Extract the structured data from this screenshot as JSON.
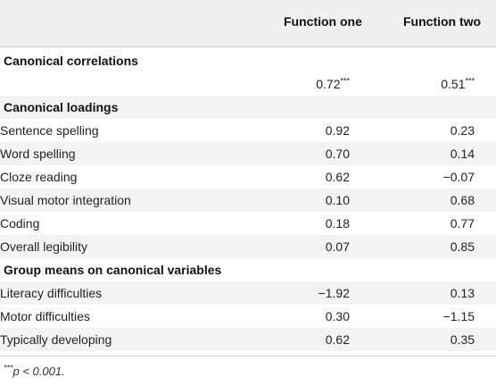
{
  "header": {
    "col1": "Function one",
    "col2": "Function two"
  },
  "sections": {
    "canonical_correlations": {
      "title": "Canonical correlations",
      "values": {
        "col1": "0.72",
        "col1_sup": "***",
        "col2": "0.51",
        "col2_sup": "***"
      }
    },
    "canonical_loadings": {
      "title": "Canonical loadings",
      "rows": [
        {
          "label": "Sentence spelling",
          "col1": "0.92",
          "col2": "0.23"
        },
        {
          "label": "Word spelling",
          "col1": "0.70",
          "col2": "0.14"
        },
        {
          "label": "Cloze reading",
          "col1": "0.62",
          "col2": "−0.07"
        },
        {
          "label": "Visual motor integration",
          "col1": "0.10",
          "col2": "0.68"
        },
        {
          "label": "Coding",
          "col1": "0.18",
          "col2": "0.77"
        },
        {
          "label": "Overall legibility",
          "col1": "0.07",
          "col2": "0.85"
        }
      ]
    },
    "group_means": {
      "title": "Group means on canonical variables",
      "rows": [
        {
          "label": "Literacy difficulties",
          "col1": "−1.92",
          "col2": "0.13"
        },
        {
          "label": "Motor difficulties",
          "col1": "0.30",
          "col2": "−1.15"
        },
        {
          "label": "Typically developing",
          "col1": "0.62",
          "col2": "0.35"
        }
      ]
    }
  },
  "footnote": {
    "marker": "***",
    "text": "p < 0.001."
  }
}
